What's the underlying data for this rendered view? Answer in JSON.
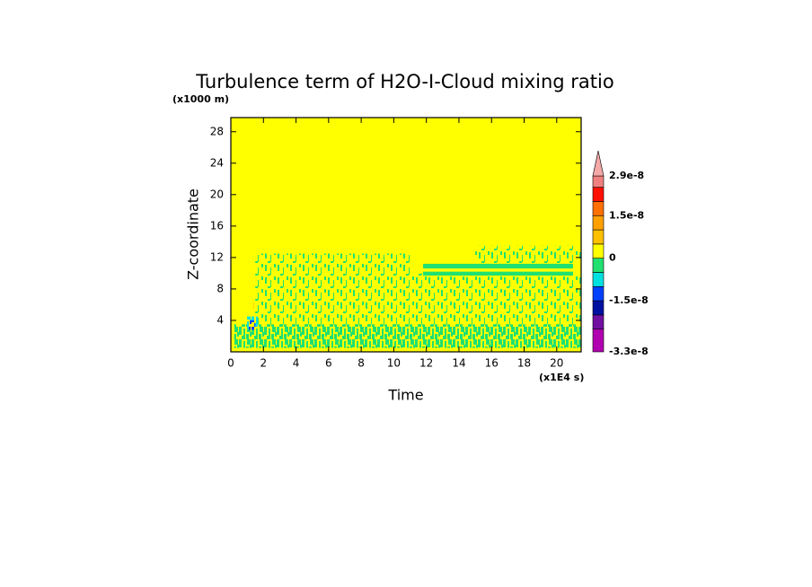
{
  "chart_data": {
    "type": "contour",
    "title": "Turbulence term of H2O-I-Cloud mixing ratio",
    "xlabel": "Time",
    "ylabel": "Z-coordinate",
    "xunit": "(x1E4 s)",
    "yunit": "(x1000 m)",
    "xlim": [
      0,
      21.5
    ],
    "ylim": [
      0,
      29.8
    ],
    "xticks": [
      0,
      2,
      4,
      6,
      8,
      10,
      12,
      14,
      16,
      18,
      20
    ],
    "yticks": [
      4,
      8,
      12,
      16,
      20,
      24,
      28
    ],
    "background_value": 2e-09,
    "patches": [
      {
        "x": [
          0.2,
          21.5
        ],
        "y": [
          0.5,
          3.5
        ],
        "value": -2e-09,
        "style": "dense"
      },
      {
        "x": [
          1.5,
          21.5
        ],
        "y": [
          3.5,
          10
        ],
        "value": -2e-09,
        "style": "sparse"
      },
      {
        "x": [
          1.5,
          11
        ],
        "y": [
          10,
          12.5
        ],
        "value": -2e-09,
        "style": "sparse"
      },
      {
        "x": [
          15,
          21.5
        ],
        "y": [
          11.2,
          13.5
        ],
        "value": -2e-09,
        "style": "sparse"
      },
      {
        "x": [
          11.8,
          21
        ],
        "y": [
          9.7,
          10.2
        ],
        "value": -2e-09,
        "style": "solid"
      },
      {
        "x": [
          11.8,
          21
        ],
        "y": [
          10.6,
          11.2
        ],
        "value": -2e-09,
        "style": "solid"
      },
      {
        "x": [
          1.0,
          1.7
        ],
        "y": [
          3,
          4.5
        ],
        "value": -7e-09,
        "style": "dense"
      },
      {
        "x": [
          1.1,
          1.5
        ],
        "y": [
          2.8,
          4
        ],
        "value": -1.2e-08,
        "style": "dense"
      },
      {
        "x": [
          1.4,
          1.6
        ],
        "y": [
          5.5,
          6.5
        ],
        "value": 7e-09,
        "style": "sparse"
      }
    ],
    "colorbar": {
      "levels": [
        -3.3e-08,
        -2.5e-08,
        -2e-08,
        -1.5e-08,
        -1e-08,
        -5e-09,
        0,
        5e-09,
        1e-08,
        1.5e-08,
        2e-08,
        2.5e-08,
        2.9e-08
      ],
      "colors": [
        "#b000b0",
        "#7010a0",
        "#0010a0",
        "#0040ff",
        "#00e0e0",
        "#20e070",
        "#ffff00",
        "#ffc000",
        "#ffa000",
        "#ff7000",
        "#ff1000",
        "#f08080"
      ],
      "over_color": "#f4a8a8",
      "ticks": [
        2.9e-08,
        1.5e-08,
        0,
        -1.5e-08,
        -3.3e-08
      ]
    }
  }
}
